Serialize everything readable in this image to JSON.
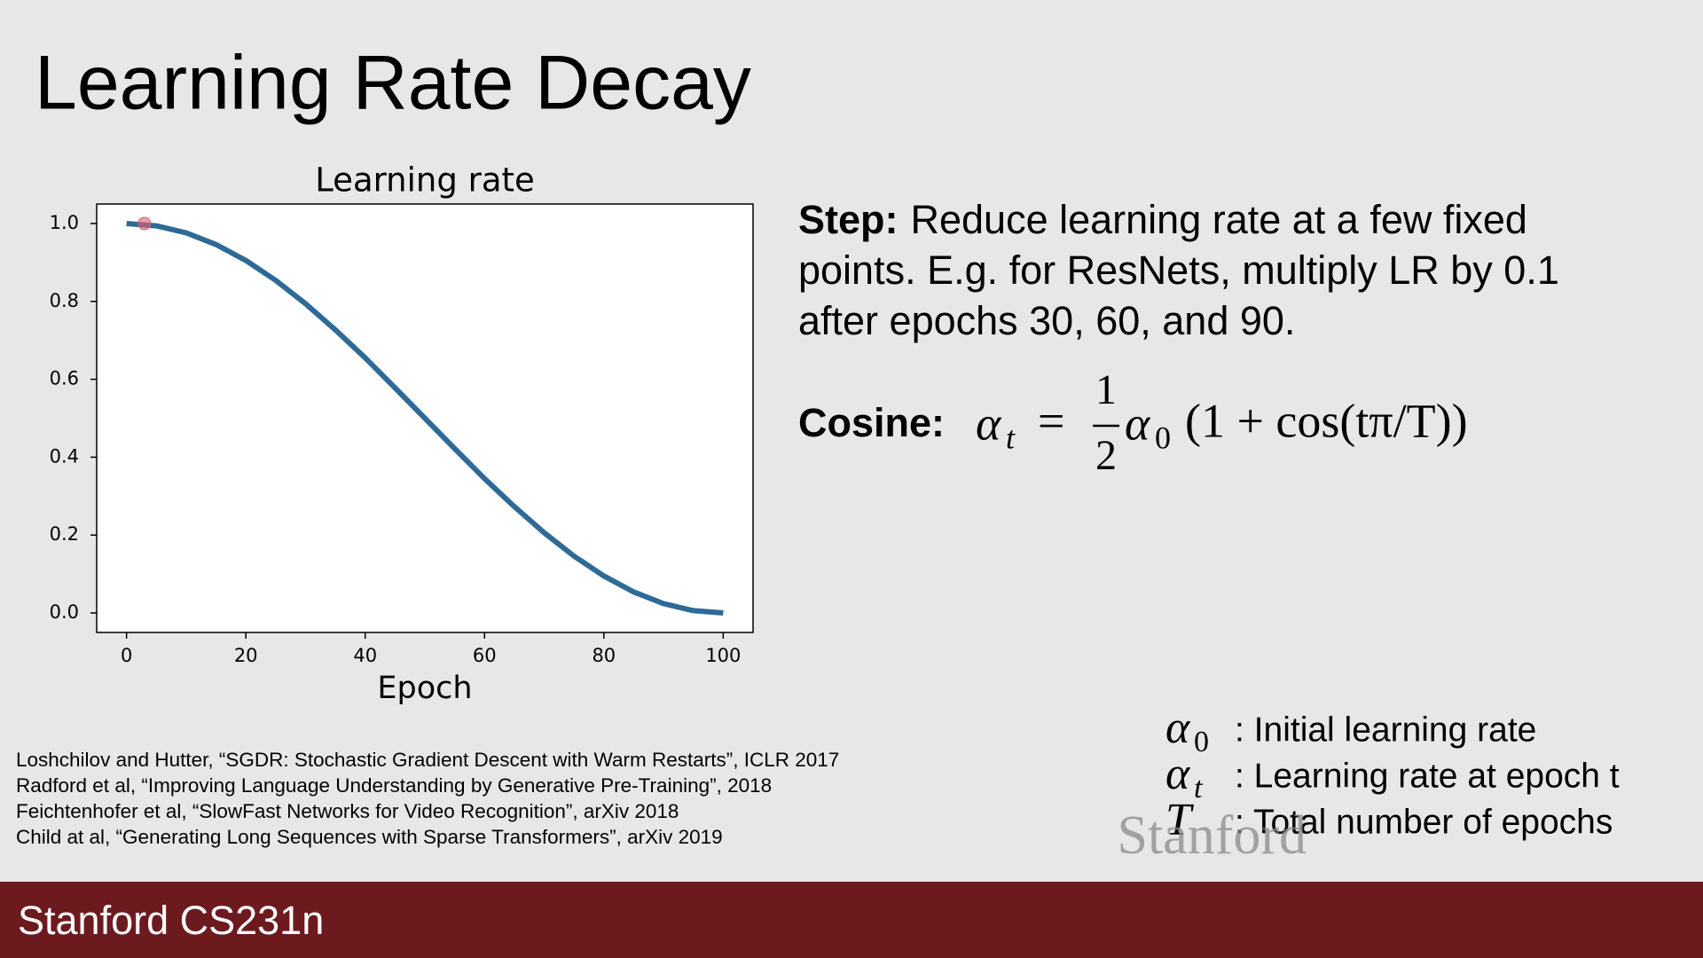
{
  "header": {
    "title": "Learning Rate Decay"
  },
  "chart_data": {
    "type": "line",
    "title": "Learning rate",
    "x_label": "Epoch",
    "x": [
      0,
      5,
      10,
      15,
      20,
      25,
      30,
      35,
      40,
      45,
      50,
      55,
      60,
      65,
      70,
      75,
      80,
      85,
      90,
      95,
      100
    ],
    "values": [
      1.0,
      0.994,
      0.976,
      0.946,
      0.905,
      0.854,
      0.794,
      0.727,
      0.655,
      0.578,
      0.5,
      0.422,
      0.345,
      0.273,
      0.206,
      0.146,
      0.095,
      0.054,
      0.024,
      0.006,
      0.0
    ],
    "color": "#2e6a97",
    "highlight": {
      "x": 3,
      "y": 1.0,
      "color": "#e0606e"
    },
    "xlim": [
      -5,
      105
    ],
    "ylim": [
      -0.05,
      1.05
    ],
    "xticks": [
      0,
      20,
      40,
      60,
      80,
      100
    ],
    "yticks": [
      {
        "value": 0,
        "label": "0.0"
      },
      0.2,
      0.4,
      0.6,
      0.8,
      {
        "value": 1,
        "label": "1.0"
      }
    ],
    "grid": false
  },
  "text": {
    "step": {
      "label": "Step:",
      "body": [
        "Reduce learning rate at a few fixed",
        "points. E.g. for ResNets, multiply LR by 0.1",
        "after epochs 30, 60, and 90."
      ]
    },
    "cosine": {
      "label": "Cosine:",
      "formula": {
        "lhs": "α",
        "lhs_sub": "t",
        "eq": "=",
        "num": "1",
        "den": "2",
        "coef": "α",
        "coef_sub": "0",
        "rest": "(1 + cos(tπ/T))"
      }
    }
  },
  "legend": [
    {
      "symbol": "α",
      "sub": "0",
      "text": ": Initial learning rate"
    },
    {
      "symbol": "α",
      "sub": "t",
      "text": ": Learning rate at epoch t"
    },
    {
      "symbol": "T",
      "text": ": Total number of epochs"
    }
  ],
  "citations": [
    "Loshchilov and Hutter, “SGDR: Stochastic Gradient Descent with Warm Restarts”, ICLR 2017",
    "Radford et al, “Improving Language Understanding by Generative Pre-Training”, 2018",
    "Feichtenhofer et al, “SlowFast Networks for Video Recognition”, arXiv 2018",
    "Child at al, “Generating Long Sequences with Sparse Transformers”, arXiv 2019"
  ],
  "footer": "Stanford CS231n",
  "watermark": "Stanford"
}
